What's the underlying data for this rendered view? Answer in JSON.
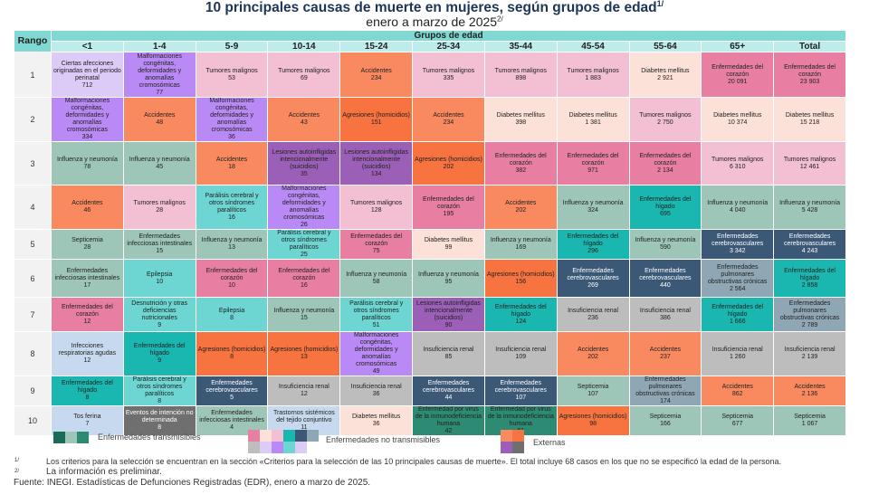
{
  "title": "10 principales causas de muerte en mujeres, según grupos de edad",
  "title_note": "1/",
  "subtitle": "enero a marzo de 2025",
  "subtitle_note": "2/",
  "table": {
    "rank_header": "Rango",
    "group_header": "Grupos de edad",
    "age_groups": [
      "<1",
      "1-4",
      "5-9",
      "10-14",
      "15-24",
      "25-34",
      "35-44",
      "45-54",
      "55-64",
      "65+",
      "Total"
    ],
    "rows": [
      {
        "rank": "1",
        "cells": [
          {
            "cause": "Ciertas afecciones originadas en el periodo perinatal",
            "value": "712",
            "type": "perinatal"
          },
          {
            "cause": "Malformaciones congénitas, deformidades y anomalías cromosómicas",
            "value": "77",
            "type": "malformaciones"
          },
          {
            "cause": "Tumores malignos",
            "value": "53",
            "type": "tumores"
          },
          {
            "cause": "Tumores malignos",
            "value": "69",
            "type": "tumores"
          },
          {
            "cause": "Accidentes",
            "value": "234",
            "type": "accidentes"
          },
          {
            "cause": "Tumores malignos",
            "value": "335",
            "type": "tumores"
          },
          {
            "cause": "Tumores malignos",
            "value": "898",
            "type": "tumores"
          },
          {
            "cause": "Tumores malignos",
            "value": "1 883",
            "type": "tumores"
          },
          {
            "cause": "Diabetes mellitus",
            "value": "2 921",
            "type": "diabetes"
          },
          {
            "cause": "Enfermedades del corazón",
            "value": "20 091",
            "type": "corazon"
          },
          {
            "cause": "Enfermedades del corazón",
            "value": "23 903",
            "type": "corazon"
          }
        ]
      },
      {
        "rank": "2",
        "cells": [
          {
            "cause": "Malformaciones congénitas, deformidades y anomalías cromosómicas",
            "value": "334",
            "type": "malformaciones"
          },
          {
            "cause": "Accidentes",
            "value": "48",
            "type": "accidentes"
          },
          {
            "cause": "Malformaciones congénitas, deformidades y anomalías cromosómicas",
            "value": "36",
            "type": "malformaciones"
          },
          {
            "cause": "Accidentes",
            "value": "43",
            "type": "accidentes"
          },
          {
            "cause": "Agresiones (homicidios)",
            "value": "151",
            "type": "agresiones"
          },
          {
            "cause": "Accidentes",
            "value": "234",
            "type": "accidentes"
          },
          {
            "cause": "Diabetes mellitus",
            "value": "398",
            "type": "diabetes"
          },
          {
            "cause": "Diabetes mellitus",
            "value": "1 381",
            "type": "diabetes"
          },
          {
            "cause": "Tumores malignos",
            "value": "2 750",
            "type": "tumores"
          },
          {
            "cause": "Diabetes mellitus",
            "value": "10 374",
            "type": "diabetes"
          },
          {
            "cause": "Diabetes mellitus",
            "value": "15 218",
            "type": "diabetes"
          }
        ]
      },
      {
        "rank": "3",
        "cells": [
          {
            "cause": "Influenza y neumonía",
            "value": "78",
            "type": "influenza"
          },
          {
            "cause": "Influenza y neumonía",
            "value": "45",
            "type": "influenza"
          },
          {
            "cause": "Accidentes",
            "value": "18",
            "type": "accidentes"
          },
          {
            "cause": "Lesiones autoinfligidas intencionalmente (suicidios)",
            "value": "35",
            "type": "lesiones"
          },
          {
            "cause": "Lesiones autoinfligidas intencionalmente (suicidios)",
            "value": "134",
            "type": "lesiones"
          },
          {
            "cause": "Agresiones (homicidios)",
            "value": "202",
            "type": "agresiones"
          },
          {
            "cause": "Enfermedades del corazón",
            "value": "382",
            "type": "corazon"
          },
          {
            "cause": "Enfermedades del corazón",
            "value": "971",
            "type": "corazon"
          },
          {
            "cause": "Enfermedades del corazón",
            "value": "2 134",
            "type": "corazon"
          },
          {
            "cause": "Tumores malignos",
            "value": "6 310",
            "type": "tumores"
          },
          {
            "cause": "Tumores malignos",
            "value": "12 461",
            "type": "tumores"
          }
        ]
      },
      {
        "rank": "4",
        "cells": [
          {
            "cause": "Accidentes",
            "value": "46",
            "type": "accidentes"
          },
          {
            "cause": "Tumores malignos",
            "value": "28",
            "type": "tumores"
          },
          {
            "cause": "Parálisis cerebral y otros síndromes paralíticos",
            "value": "16",
            "type": "paralisis"
          },
          {
            "cause": "Malformaciones congénitas, deformidades y anomalías cromosómicas",
            "value": "26",
            "type": "malformaciones"
          },
          {
            "cause": "Tumores malignos",
            "value": "128",
            "type": "tumores"
          },
          {
            "cause": "Enfermedades del corazón",
            "value": "195",
            "type": "corazon"
          },
          {
            "cause": "Accidentes",
            "value": "202",
            "type": "accidentes"
          },
          {
            "cause": "Influenza y neumonía",
            "value": "324",
            "type": "influenza"
          },
          {
            "cause": "Enfermedades del hígado",
            "value": "695",
            "type": "higado"
          },
          {
            "cause": "Influenza y neumonía",
            "value": "4 040",
            "type": "influenza"
          },
          {
            "cause": "Influenza y neumonía",
            "value": "5 428",
            "type": "influenza"
          }
        ]
      },
      {
        "rank": "5",
        "cells": [
          {
            "cause": "Septicemia",
            "value": "28",
            "type": "influenza"
          },
          {
            "cause": "Enfermedades infecciosas intestinales",
            "value": "15",
            "type": "influenza"
          },
          {
            "cause": "Influenza y neumonía",
            "value": "13",
            "type": "influenza"
          },
          {
            "cause": "Parálisis cerebral y otros síndromes paralíticos",
            "value": "25",
            "type": "paralisis"
          },
          {
            "cause": "Enfermedades del corazón",
            "value": "75",
            "type": "corazon"
          },
          {
            "cause": "Diabetes mellitus",
            "value": "99",
            "type": "diabetes"
          },
          {
            "cause": "Influenza y neumonía",
            "value": "169",
            "type": "influenza"
          },
          {
            "cause": "Enfermedades del hígado",
            "value": "296",
            "type": "higado"
          },
          {
            "cause": "Influenza y neumonía",
            "value": "590",
            "type": "influenza"
          },
          {
            "cause": "Enfermedades cerebrovasculares",
            "value": "3 342",
            "type": "cerebro"
          },
          {
            "cause": "Enfermedades cerebrovasculares",
            "value": "4 243",
            "type": "cerebro"
          }
        ]
      },
      {
        "rank": "6",
        "cells": [
          {
            "cause": "Enfermedades infecciosas intestinales",
            "value": "17",
            "type": "influenza"
          },
          {
            "cause": "Epilepsia",
            "value": "10",
            "type": "paralisis"
          },
          {
            "cause": "Enfermedades del corazón",
            "value": "10",
            "type": "corazon"
          },
          {
            "cause": "Enfermedades del corazón",
            "value": "16",
            "type": "corazon"
          },
          {
            "cause": "Influenza y neumonía",
            "value": "58",
            "type": "influenza"
          },
          {
            "cause": "Influenza y neumonía",
            "value": "95",
            "type": "influenza"
          },
          {
            "cause": "Agresiones (homicidios)",
            "value": "156",
            "type": "agresiones"
          },
          {
            "cause": "Enfermedades cerebrovasculares",
            "value": "269",
            "type": "cerebro"
          },
          {
            "cause": "Enfermedades cerebrovasculares",
            "value": "440",
            "type": "cerebro"
          },
          {
            "cause": "Enfermedades pulmonares obstructivas crónicas",
            "value": "2 564",
            "type": "epoc"
          },
          {
            "cause": "Enfermedades del hígado",
            "value": "2 858",
            "type": "higado"
          }
        ]
      },
      {
        "rank": "7",
        "cells": [
          {
            "cause": "Enfermedades del corazón",
            "value": "12",
            "type": "corazon"
          },
          {
            "cause": "Desnutrición y otras deficiencias nutricionales",
            "value": "9",
            "type": "paralisis"
          },
          {
            "cause": "Epilepsia",
            "value": "8",
            "type": "paralisis"
          },
          {
            "cause": "Influenza y neumonía",
            "value": "15",
            "type": "influenza"
          },
          {
            "cause": "Parálisis cerebral y otros síndromes paralíticos",
            "value": "51",
            "type": "paralisis"
          },
          {
            "cause": "Lesiones autoinfligidas intencionalmente (suicidios)",
            "value": "90",
            "type": "lesiones"
          },
          {
            "cause": "Enfermedades del hígado",
            "value": "124",
            "type": "higado"
          },
          {
            "cause": "Insuficiencia renal",
            "value": "236",
            "type": "renal"
          },
          {
            "cause": "Insuficiencia renal",
            "value": "386",
            "type": "renal"
          },
          {
            "cause": "Enfermedades del hígado",
            "value": "1 666",
            "type": "higado"
          },
          {
            "cause": "Enfermedades pulmonares obstructivas crónicas",
            "value": "2 789",
            "type": "epoc"
          }
        ]
      },
      {
        "rank": "8",
        "cells": [
          {
            "cause": "Infecciones respiratorias agudas",
            "value": "12",
            "type": "ira"
          },
          {
            "cause": "Enfermedades del hígado",
            "value": "9",
            "type": "higado"
          },
          {
            "cause": "Agresiones (homicidios)",
            "value": "8",
            "type": "agresiones"
          },
          {
            "cause": "Agresiones (homicidios)",
            "value": "13",
            "type": "agresiones"
          },
          {
            "cause": "Malformaciones congénitas, deformidades y anomalías cromosómicas",
            "value": "49",
            "type": "malformaciones"
          },
          {
            "cause": "Insuficiencia renal",
            "value": "85",
            "type": "renal"
          },
          {
            "cause": "Insuficiencia renal",
            "value": "109",
            "type": "renal"
          },
          {
            "cause": "Accidentes",
            "value": "202",
            "type": "accidentes"
          },
          {
            "cause": "Accidentes",
            "value": "237",
            "type": "accidentes"
          },
          {
            "cause": "Insuficiencia renal",
            "value": "1 260",
            "type": "renal"
          },
          {
            "cause": "Insuficiencia renal",
            "value": "2 139",
            "type": "renal"
          }
        ]
      },
      {
        "rank": "9",
        "cells": [
          {
            "cause": "Enfermedades del hígado",
            "value": "8",
            "type": "higado"
          },
          {
            "cause": "Parálisis cerebral y otros síndromes paralíticos",
            "value": "8",
            "type": "paralisis"
          },
          {
            "cause": "Enfermedades cerebrovasculares",
            "value": "5",
            "type": "cerebro"
          },
          {
            "cause": "Insuficiencia renal",
            "value": "12",
            "type": "renal"
          },
          {
            "cause": "Insuficiencia renal",
            "value": "36",
            "type": "renal"
          },
          {
            "cause": "Enfermedades cerebrovasculares",
            "value": "44",
            "type": "cerebro"
          },
          {
            "cause": "Enfermedades cerebrovasculares",
            "value": "107",
            "type": "cerebro"
          },
          {
            "cause": "Septicemia",
            "value": "107",
            "type": "influenza"
          },
          {
            "cause": "Enfermedades pulmonares obstructivas crónicas",
            "value": "174",
            "type": "epoc"
          },
          {
            "cause": "Accidentes",
            "value": "862",
            "type": "accidentes"
          },
          {
            "cause": "Accidentes",
            "value": "2 136",
            "type": "accidentes"
          }
        ]
      },
      {
        "rank": "10",
        "cells": [
          {
            "cause": "Tos ferina",
            "value": "7",
            "type": "ira"
          },
          {
            "cause": "Eventos de intención no determinada",
            "value": "8",
            "type": "eventos"
          },
          {
            "cause": "Enfermedades infecciosas intestinales",
            "value": "4",
            "type": "influenza"
          },
          {
            "cause": "Trastornos sistémicos del tejido conjuntivo",
            "value": "11",
            "type": "ira"
          },
          {
            "cause": "Diabetes mellitus",
            "value": "36",
            "type": "diabetes"
          },
          {
            "cause": "Enfermedad por virus de la inmunodeficiencia humana",
            "value": "42",
            "type": "vih"
          },
          {
            "cause": "Enfermedad por virus de la inmunodeficiencia humana",
            "value": "61",
            "type": "vih"
          },
          {
            "cause": "Agresiones (homicidios)",
            "value": "98",
            "type": "agresiones"
          },
          {
            "cause": "Septicemia",
            "value": "166",
            "type": "influenza"
          },
          {
            "cause": "Septicemia",
            "value": "677",
            "type": "influenza"
          },
          {
            "cause": "Septicemia",
            "value": "1 067",
            "type": "influenza"
          }
        ]
      }
    ]
  },
  "colors": {
    "perinatal": "#dccbf6",
    "malformaciones": "#b98af5",
    "tumores": "#f2bfd3",
    "accidentes": "#f98a60",
    "agresiones": "#f7733f",
    "diabetes": "#fce1d8",
    "corazon": "#e87fa3",
    "influenza": "#9dc5b8",
    "lesiones": "#9b5fb7",
    "paralisis": "#6dd6d2",
    "higado": "#19b7b0",
    "cerebro": "#3b5877",
    "epoc": "#8fa6b4",
    "renal": "#bdbdbd",
    "ira": "#c6d9ee",
    "eventos": "#6f6f6f",
    "vih": "#2d8a73"
  },
  "dark_types": [
    "cerebro",
    "eventos"
  ],
  "legend": {
    "transmisibles": "Enfermedades transmisibles",
    "no_transmisibles": "Enfermedades no transmisibles",
    "externas": "Externas",
    "transmisibles_colors": [
      "#1a6b5a",
      "#9dc5b8",
      "#2d8a73"
    ],
    "no_transmisibles_colors": [
      "#e87fa3",
      "#fce1d8",
      "#f2bfd3",
      "#19b7b0",
      "#3b5877",
      "#8fa6b4",
      "#bdbdbd",
      "#dccbf6",
      "#b98af5",
      "#6dd6d2",
      "#dccbf6"
    ],
    "externas_colors": [
      "#f98a60",
      "#f7733f",
      "#9b5fb7",
      "#6f6f6f"
    ]
  },
  "footnotes": {
    "note1_mark": "1/",
    "note1": "Los criterios para la selección se encuentran en la sección «Criterios para la selección de las 10 principales causas de muerte». El total incluye 68 casos en los que no se especificó la edad de la persona.",
    "note2_mark": "2/",
    "note2": "La información es preliminar.",
    "source": "Fuente: INEGI. Estadísticas de Defunciones Registradas (EDR), enero a marzo de 2025."
  }
}
